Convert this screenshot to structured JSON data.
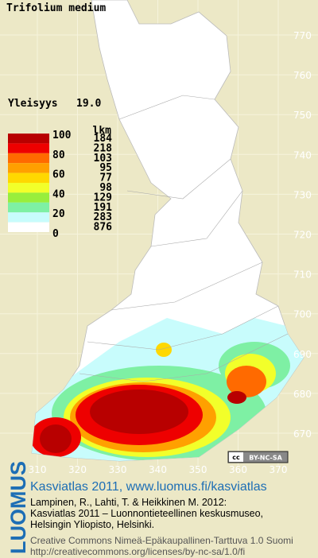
{
  "title": "Trifolium medium",
  "frequency": {
    "label": "Yleisyys",
    "value": "19.0"
  },
  "legend": {
    "header": "lkm",
    "scale_labels": [
      "100",
      "80",
      "60",
      "40",
      "20",
      "0"
    ],
    "bands": [
      {
        "color": "#b80000",
        "count": "184"
      },
      {
        "color": "#ee0000",
        "count": "218"
      },
      {
        "color": "#ff6a00",
        "count": "103"
      },
      {
        "color": "#ffa000",
        "count": "95"
      },
      {
        "color": "#ffd800",
        "count": "77"
      },
      {
        "color": "#f2ff2a",
        "count": "98"
      },
      {
        "color": "#98ee3c",
        "count": "129"
      },
      {
        "color": "#7ef0a4",
        "count": "191"
      },
      {
        "color": "#c8fcfc",
        "count": "283"
      },
      {
        "color": "#ffffff",
        "count": "876"
      }
    ]
  },
  "grid": {
    "y_labels": [
      "770",
      "760",
      "750",
      "740",
      "730",
      "720",
      "710",
      "700",
      "690",
      "680",
      "670"
    ],
    "x_labels": [
      "310",
      "320",
      "330",
      "340",
      "350",
      "360",
      "370"
    ]
  },
  "license_badge": "BY-NC-SA",
  "footer": {
    "logo": "LUOMUS",
    "headline": "Kasviatlas 2011, www.luomus.fi/kasviatlas",
    "citation": [
      "Lampinen, R., Lahti, T. & Heikkinen M. 2012:",
      "Kasviatlas 2011 – Luonnontieteellinen keskusmuseo,",
      "Helsingin Yliopisto, Helsinki."
    ],
    "license": [
      "Creative Commons Nimeä-Epäkaupallinen-Tarttuva 1.0 Suomi",
      "http://creativecommons.org/licenses/by-nc-sa/1.0/fi"
    ]
  }
}
